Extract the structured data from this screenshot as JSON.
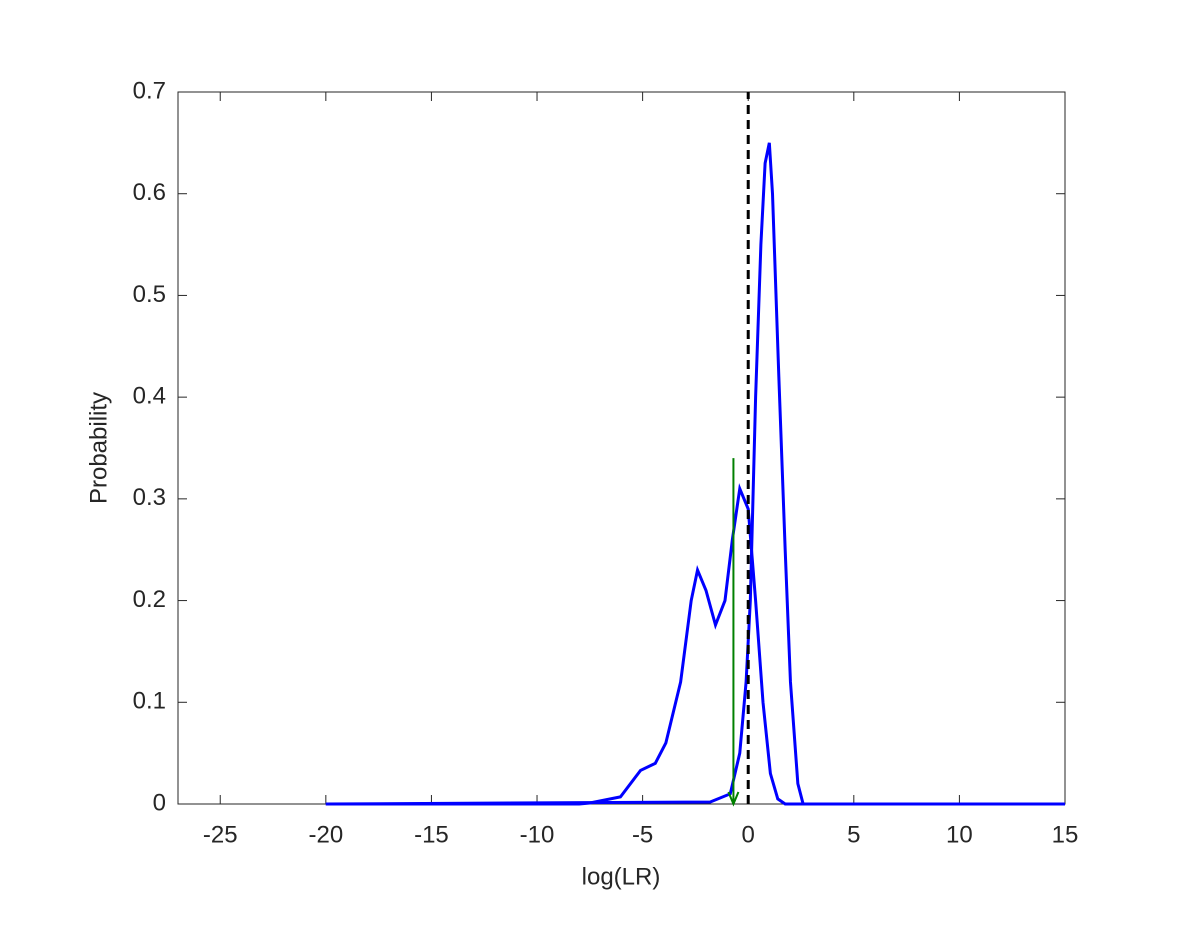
{
  "chart_data": {
    "type": "line",
    "xlabel": "log(LR)",
    "ylabel": "Probability",
    "xlim": [
      -27,
      15
    ],
    "ylim": [
      0,
      0.7
    ],
    "xticks": [
      -25,
      -20,
      -15,
      -10,
      -5,
      0,
      5,
      10,
      15
    ],
    "yticks": [
      0,
      0.1,
      0.2,
      0.3,
      0.4,
      0.5,
      0.6,
      0.7
    ],
    "grid": false,
    "series": [
      {
        "color": "#0000ff",
        "x": [
          -20,
          -8,
          -7.5,
          -6.05,
          -5.1,
          -4.4,
          -3.9,
          -3.2,
          -2.7,
          -2.4,
          -2.0,
          -1.55,
          -1.1,
          -0.75,
          -0.4,
          0,
          0.35,
          0.7,
          1.05,
          1.4,
          1.75,
          15
        ],
        "values": [
          0,
          0,
          0.001,
          0.007,
          0.033,
          0.04,
          0.06,
          0.12,
          0.2,
          0.23,
          0.21,
          0.176,
          0.2,
          0.26,
          0.31,
          0.29,
          0.2,
          0.1,
          0.03,
          0.005,
          0,
          0
        ]
      },
      {
        "color": "#0000ff",
        "x": [
          -20,
          -1.8,
          -0.85,
          -0.4,
          -0.1,
          0.1,
          0.35,
          0.6,
          0.8,
          1.0,
          1.15,
          1.45,
          1.75,
          2.0,
          2.35,
          2.6,
          15
        ],
        "values": [
          0,
          0.002,
          0.01,
          0.05,
          0.12,
          0.2,
          0.4,
          0.55,
          0.63,
          0.65,
          0.6,
          0.42,
          0.25,
          0.12,
          0.02,
          0,
          0
        ]
      }
    ],
    "vline": {
      "x": 0,
      "y": [
        0,
        0.7
      ],
      "color": "#000000",
      "dashed": true
    },
    "arrow": {
      "x": -0.7,
      "y_start": 0.34,
      "y_end": 0,
      "color": "#008000"
    }
  }
}
